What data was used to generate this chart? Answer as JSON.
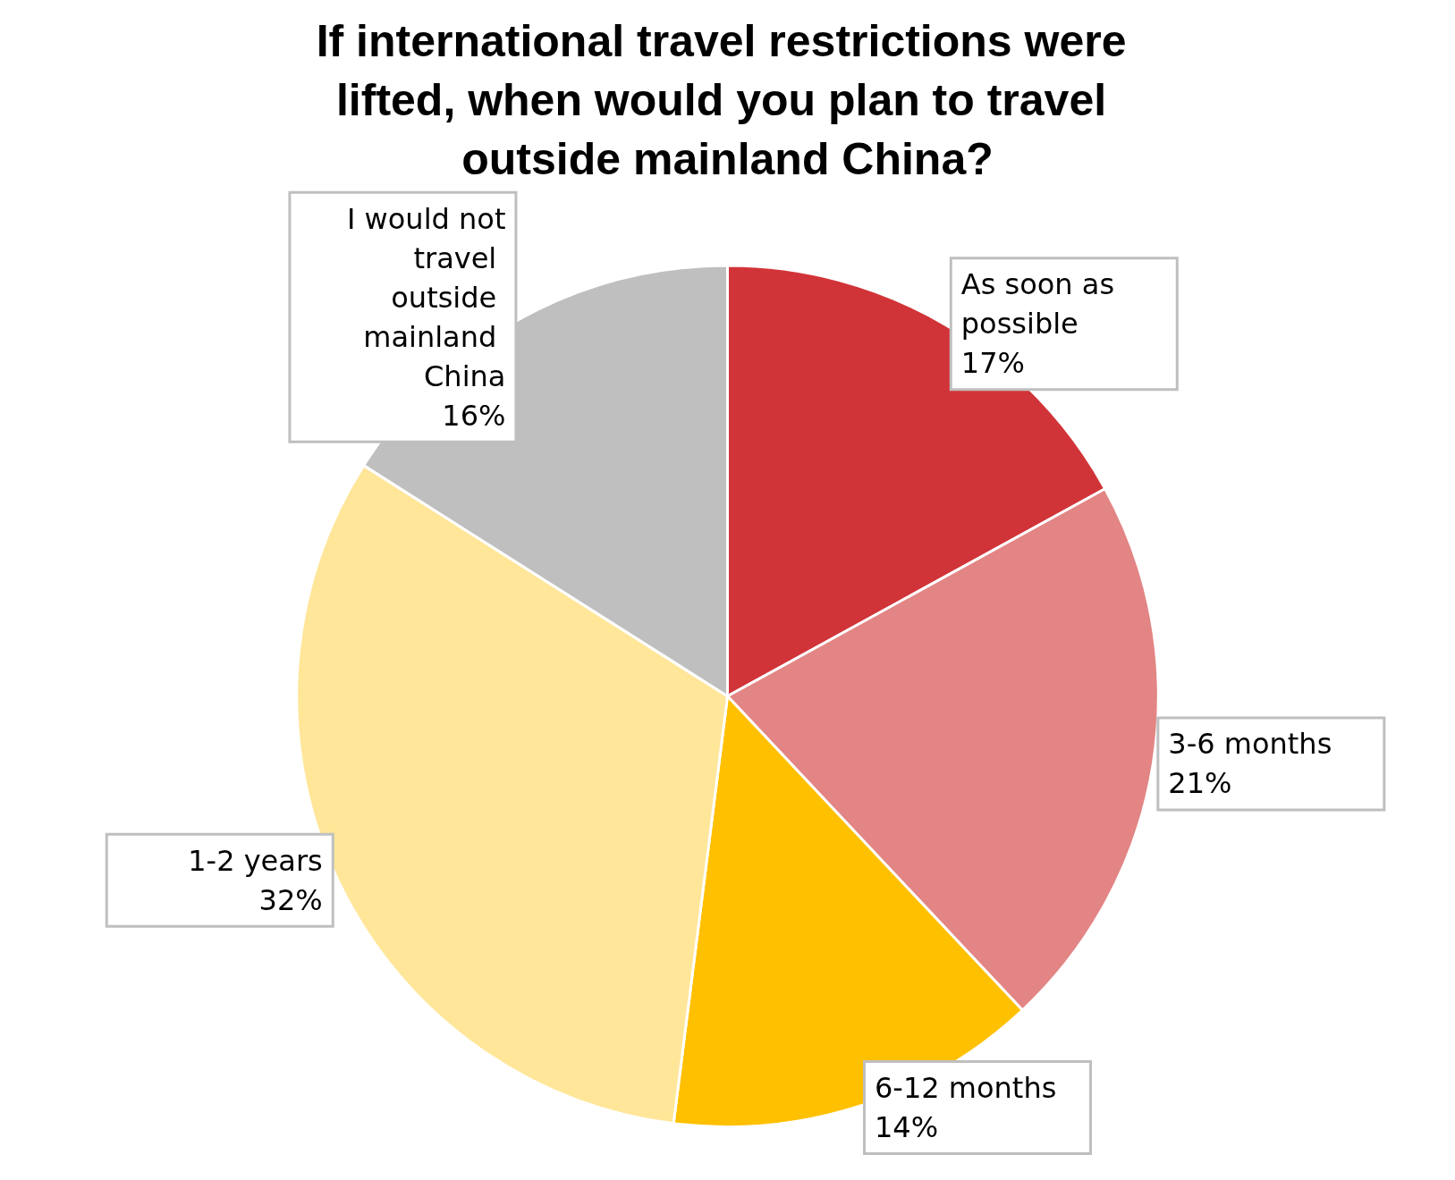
{
  "chart_data": {
    "type": "pie",
    "title": "If international travel restrictions were lifted, when would you plan to travel outside mainland China?",
    "categories": [
      "As soon as possible",
      "3-6 months",
      "6-12 months",
      "1-2 years",
      "I would not travel outside mainland China"
    ],
    "values": [
      17,
      21,
      14,
      32,
      16
    ],
    "colors": [
      "#d13438",
      "#e28584",
      "#ffc000",
      "#ffe699",
      "#bfbfbf"
    ],
    "value_labels": [
      "17%",
      "21%",
      "14%",
      "32%",
      "16%"
    ],
    "legend": false
  }
}
